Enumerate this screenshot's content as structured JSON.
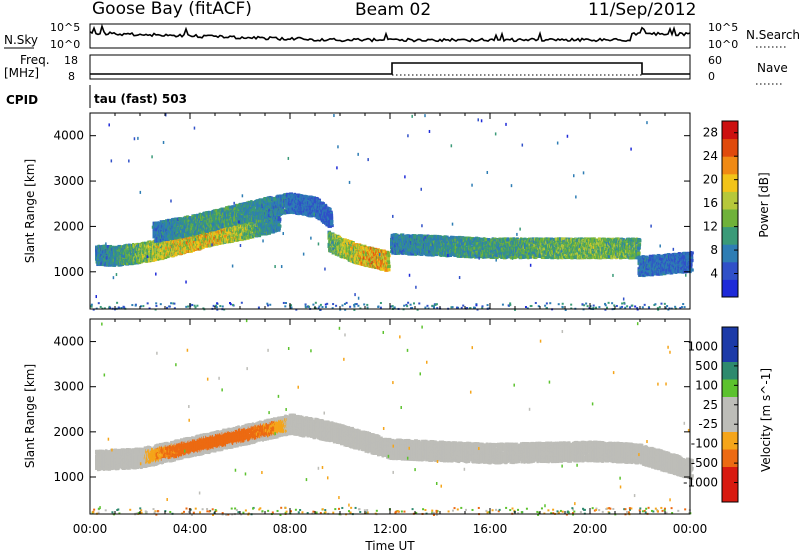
{
  "header": {
    "station": "Goose Bay (fitACF)",
    "beam": "Beam 02",
    "date": "11/Sep/2012"
  },
  "top_panels": {
    "nsky_label": "N.Sky",
    "nsky_tick_hi": "10^5",
    "nsky_tick_lo": "10^0",
    "nsearch_label": "N.Search",
    "nsearch_tick_hi": "10^5",
    "nsearch_tick_lo": "10^0",
    "freq_label": "Freq.",
    "freq_unit": "[MHz]",
    "freq_tick_hi": "18",
    "freq_tick_lo": "8",
    "nave_label": "Nave",
    "nave_tick_hi": "60",
    "nave_tick_lo": "0",
    "cpid_label": "CPID",
    "cpid_value": "tau (fast) 503"
  },
  "chart_data": [
    {
      "type": "heatmap",
      "title": "",
      "ylabel": "Slant Range [km]",
      "xlabel": "",
      "ylim": [
        180,
        4500
      ],
      "xlim": [
        0,
        24
      ],
      "y_ticks": [
        "1000",
        "2000",
        "3000",
        "4000"
      ],
      "colorbar": {
        "label": "Power [dB]",
        "ticks": [
          "4",
          "8",
          "12",
          "16",
          "20",
          "24",
          "28"
        ],
        "range": [
          0,
          30
        ]
      },
      "features": [
        {
          "name": "lower band",
          "x": [
            0.2,
            1.0,
            2.0,
            3.0,
            4.0,
            5.0,
            6.0,
            6.8,
            7.5
          ],
          "y": [
            1400,
            1380,
            1450,
            1550,
            1700,
            1850,
            1950,
            2050,
            2150
          ],
          "value_db": [
            9,
            11,
            16,
            20,
            22,
            22,
            18,
            12,
            9
          ]
        },
        {
          "name": "upper arc",
          "x": [
            2.5,
            4.0,
            5.5,
            7.0,
            8.0,
            9.0,
            9.6
          ],
          "y": [
            1900,
            2050,
            2250,
            2450,
            2550,
            2450,
            2200
          ],
          "value_db": [
            8,
            12,
            12,
            10,
            8,
            7,
            6
          ]
        },
        {
          "name": "evening echo",
          "x": [
            9.5,
            10.5,
            11.2,
            11.9
          ],
          "y": [
            1700,
            1450,
            1350,
            1250
          ],
          "value_db": [
            14,
            20,
            24,
            22
          ]
        },
        {
          "name": "night band",
          "x": [
            12.0,
            14.0,
            16.0,
            18.0,
            20.0,
            21.9
          ],
          "y": [
            1650,
            1600,
            1550,
            1550,
            1550,
            1550
          ],
          "value_db": [
            9,
            11,
            12,
            14,
            16,
            14
          ]
        },
        {
          "name": "late segment",
          "x": [
            21.9,
            23.0,
            24.0
          ],
          "y": [
            1150,
            1200,
            1250
          ],
          "value_db": [
            8,
            8,
            7
          ]
        }
      ]
    },
    {
      "type": "heatmap",
      "title": "",
      "ylabel": "Slant Range [km]",
      "xlabel": "Time UT",
      "ylim": [
        180,
        4500
      ],
      "xlim": [
        0,
        24
      ],
      "x_ticks": [
        "00:00",
        "04:00",
        "08:00",
        "12:00",
        "16:00",
        "20:00",
        "00:00"
      ],
      "y_ticks": [
        "1000",
        "2000",
        "3000",
        "4000"
      ],
      "colorbar": {
        "label": "Velocity [m s^-1]",
        "ticks": [
          "1000",
          "500",
          "100",
          "25",
          "-25",
          "-100",
          "-500",
          "-1000"
        ],
        "range": [
          -1000,
          1000
        ]
      },
      "features": [
        {
          "name": "ground scatter band",
          "x": [
            0.2,
            2.0,
            4.0,
            6.0,
            8.0,
            9.5,
            12.0,
            16.0,
            20.0,
            21.9,
            24.0
          ],
          "y": [
            1400,
            1450,
            1700,
            1950,
            2200,
            2050,
            1650,
            1550,
            1600,
            1550,
            1200
          ],
          "velocity": [
            0,
            0,
            -300,
            -300,
            0,
            0,
            0,
            0,
            0,
            0,
            0
          ]
        }
      ]
    }
  ]
}
